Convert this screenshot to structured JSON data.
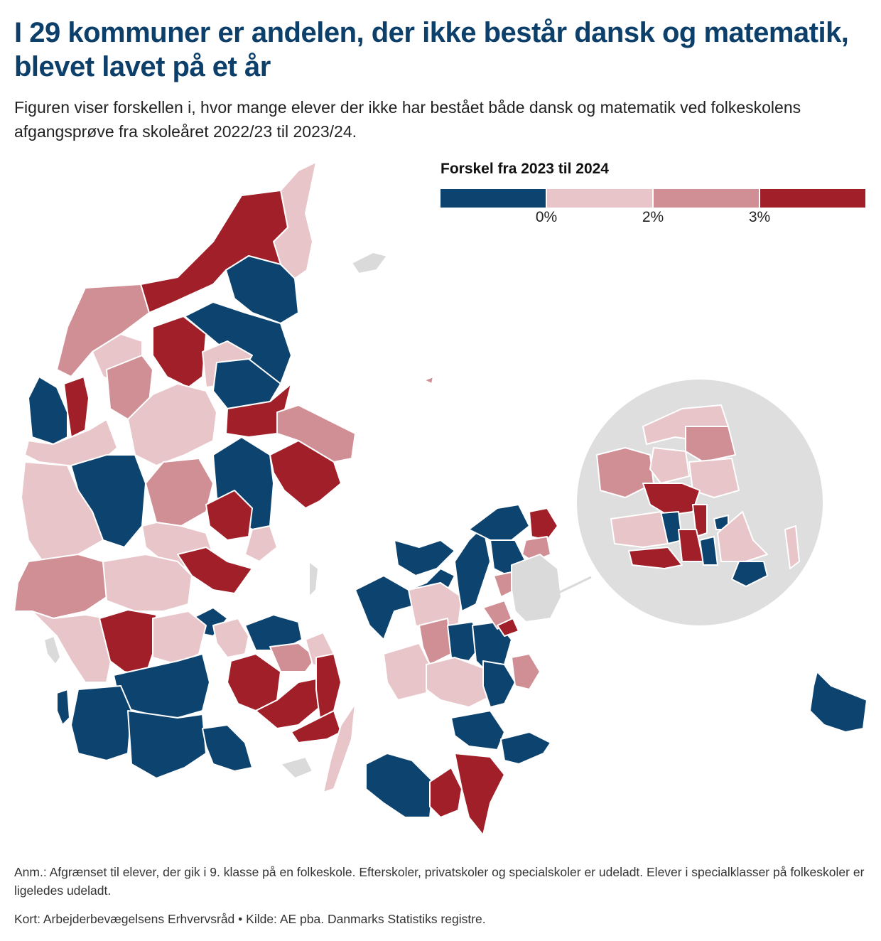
{
  "header": {
    "title": "I 29 kommuner er andelen, der ikke består dansk og matematik, blevet lavet på et år",
    "subtitle": "Figuren viser forskellen i, hvor mange elever der ikke har bestået både dansk og matematik ved folkeskolens afgangsprøve fra skoleåret 2022/23 til 2023/24."
  },
  "legend": {
    "title": "Forskel fra 2023 til 2024",
    "classes": [
      {
        "color": "#0d436f",
        "range": "< 0%"
      },
      {
        "color": "#e8c5c9",
        "range": "0–2%"
      },
      {
        "color": "#cf8f95",
        "range": "2–3%"
      },
      {
        "color": "#a11f29",
        "range": "> 3%"
      }
    ],
    "ticks": [
      "0%",
      "2%",
      "3%"
    ]
  },
  "map": {
    "colors": {
      "negative": "#0d436f",
      "low": "#e8c5c9",
      "mid": "#cf8f95",
      "high": "#a11f29",
      "no_data": "#dadada",
      "inset_background": "#dedede",
      "border": "#ffffff"
    },
    "inset": "Hovedstadsområdet (forstørret)"
  },
  "footer": {
    "note": "Anm.: Afgrænset til elever, der gik i 9. klasse på en folkeskole. Efterskoler, privatskoler og specialskoler er udeladt. Elever i specialklasser på folkeskoler er ligeledes udeladt.",
    "source": "Kort: Arbejderbevægelsens Erhvervsråd • Kilde: AE pba. Danmarks Statistiks registre."
  }
}
